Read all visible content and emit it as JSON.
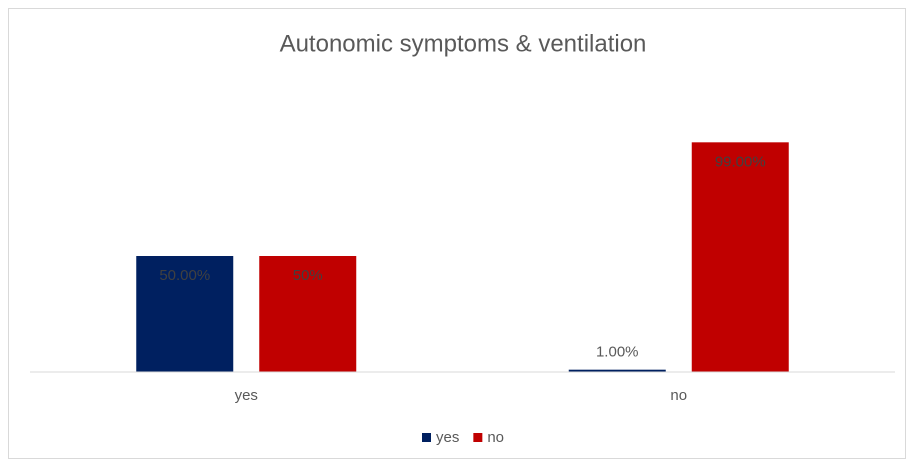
{
  "chart_data": {
    "type": "bar",
    "title": "Autonomic symptoms & ventilation",
    "categories": [
      "yes",
      "no"
    ],
    "series": [
      {
        "name": "yes",
        "color": "#002060",
        "values": [
          50,
          1
        ],
        "value_labels": [
          "50.00%",
          "1.00%"
        ]
      },
      {
        "name": "no",
        "color": "#c00000",
        "values": [
          50,
          99
        ],
        "value_labels": [
          "50%",
          "99.00%"
        ]
      }
    ],
    "ylim": [
      0,
      100
    ],
    "legend": "bottom"
  }
}
